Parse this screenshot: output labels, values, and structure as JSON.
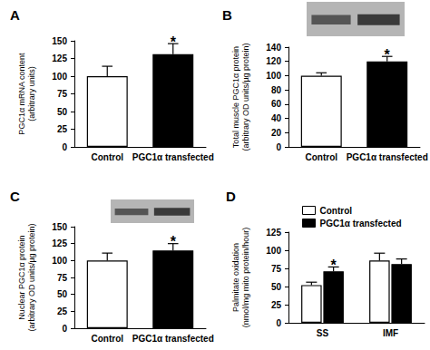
{
  "chart_data": [
    {
      "type": "bar",
      "title": "A",
      "categories": [
        "Control",
        "PGC1α transfected"
      ],
      "values": [
        100,
        131
      ],
      "errors": [
        14,
        15
      ],
      "colors": [
        "#ffffff",
        "#000000"
      ],
      "ylabel": "PGC1α mRNA content\n(arbitrary units)",
      "ylim": [
        0,
        150
      ],
      "yticks": [
        0,
        25,
        50,
        75,
        100,
        125,
        150
      ],
      "grid": false,
      "annotations": [
        {
          "text": "*",
          "x": "PGC1α transfected"
        }
      ]
    },
    {
      "type": "bar",
      "title": "B",
      "categories": [
        "Control",
        "PGC1α transfected"
      ],
      "values": [
        100,
        120
      ],
      "errors": [
        4,
        7
      ],
      "colors": [
        "#ffffff",
        "#000000"
      ],
      "ylabel": "Total muscle PGC1α protein\n(arbitrary OD units/µg protein)",
      "ylim": [
        0,
        140
      ],
      "yticks": [
        0,
        20,
        40,
        60,
        80,
        100,
        120,
        140
      ],
      "grid": false,
      "annotations": [
        {
          "text": "*",
          "x": "PGC1α transfected"
        }
      ]
    },
    {
      "type": "bar",
      "title": "C",
      "categories": [
        "Control",
        "PGC1α transfected"
      ],
      "values": [
        100,
        115
      ],
      "errors": [
        11,
        10
      ],
      "colors": [
        "#ffffff",
        "#000000"
      ],
      "ylabel": "Nuclear PGC1α protein\n(arbitrary OD units/µg protein)",
      "ylim": [
        0,
        150
      ],
      "yticks": [
        0,
        25,
        50,
        75,
        100,
        125,
        150
      ],
      "grid": false,
      "annotations": [
        {
          "text": "*",
          "x": "PGC1α transfected"
        }
      ]
    },
    {
      "type": "bar",
      "title": "D",
      "categories": [
        "SS",
        "IMF"
      ],
      "series": [
        {
          "name": "Control",
          "color": "#ffffff",
          "values": [
            52,
            86
          ],
          "errors": [
            4,
            10
          ]
        },
        {
          "name": "PGC1α transfected",
          "color": "#000000",
          "values": [
            71,
            81
          ],
          "errors": [
            6,
            7
          ]
        }
      ],
      "ylabel": "Palmitate oxidation\n(nmol/mg mito protein/hour)",
      "ylim": [
        0,
        125
      ],
      "yticks": [
        0,
        25,
        50,
        75,
        100,
        125
      ],
      "grid": false,
      "legend": "upper left",
      "annotations": [
        {
          "text": "*",
          "x": "SS",
          "series": "PGC1α transfected"
        }
      ]
    }
  ]
}
